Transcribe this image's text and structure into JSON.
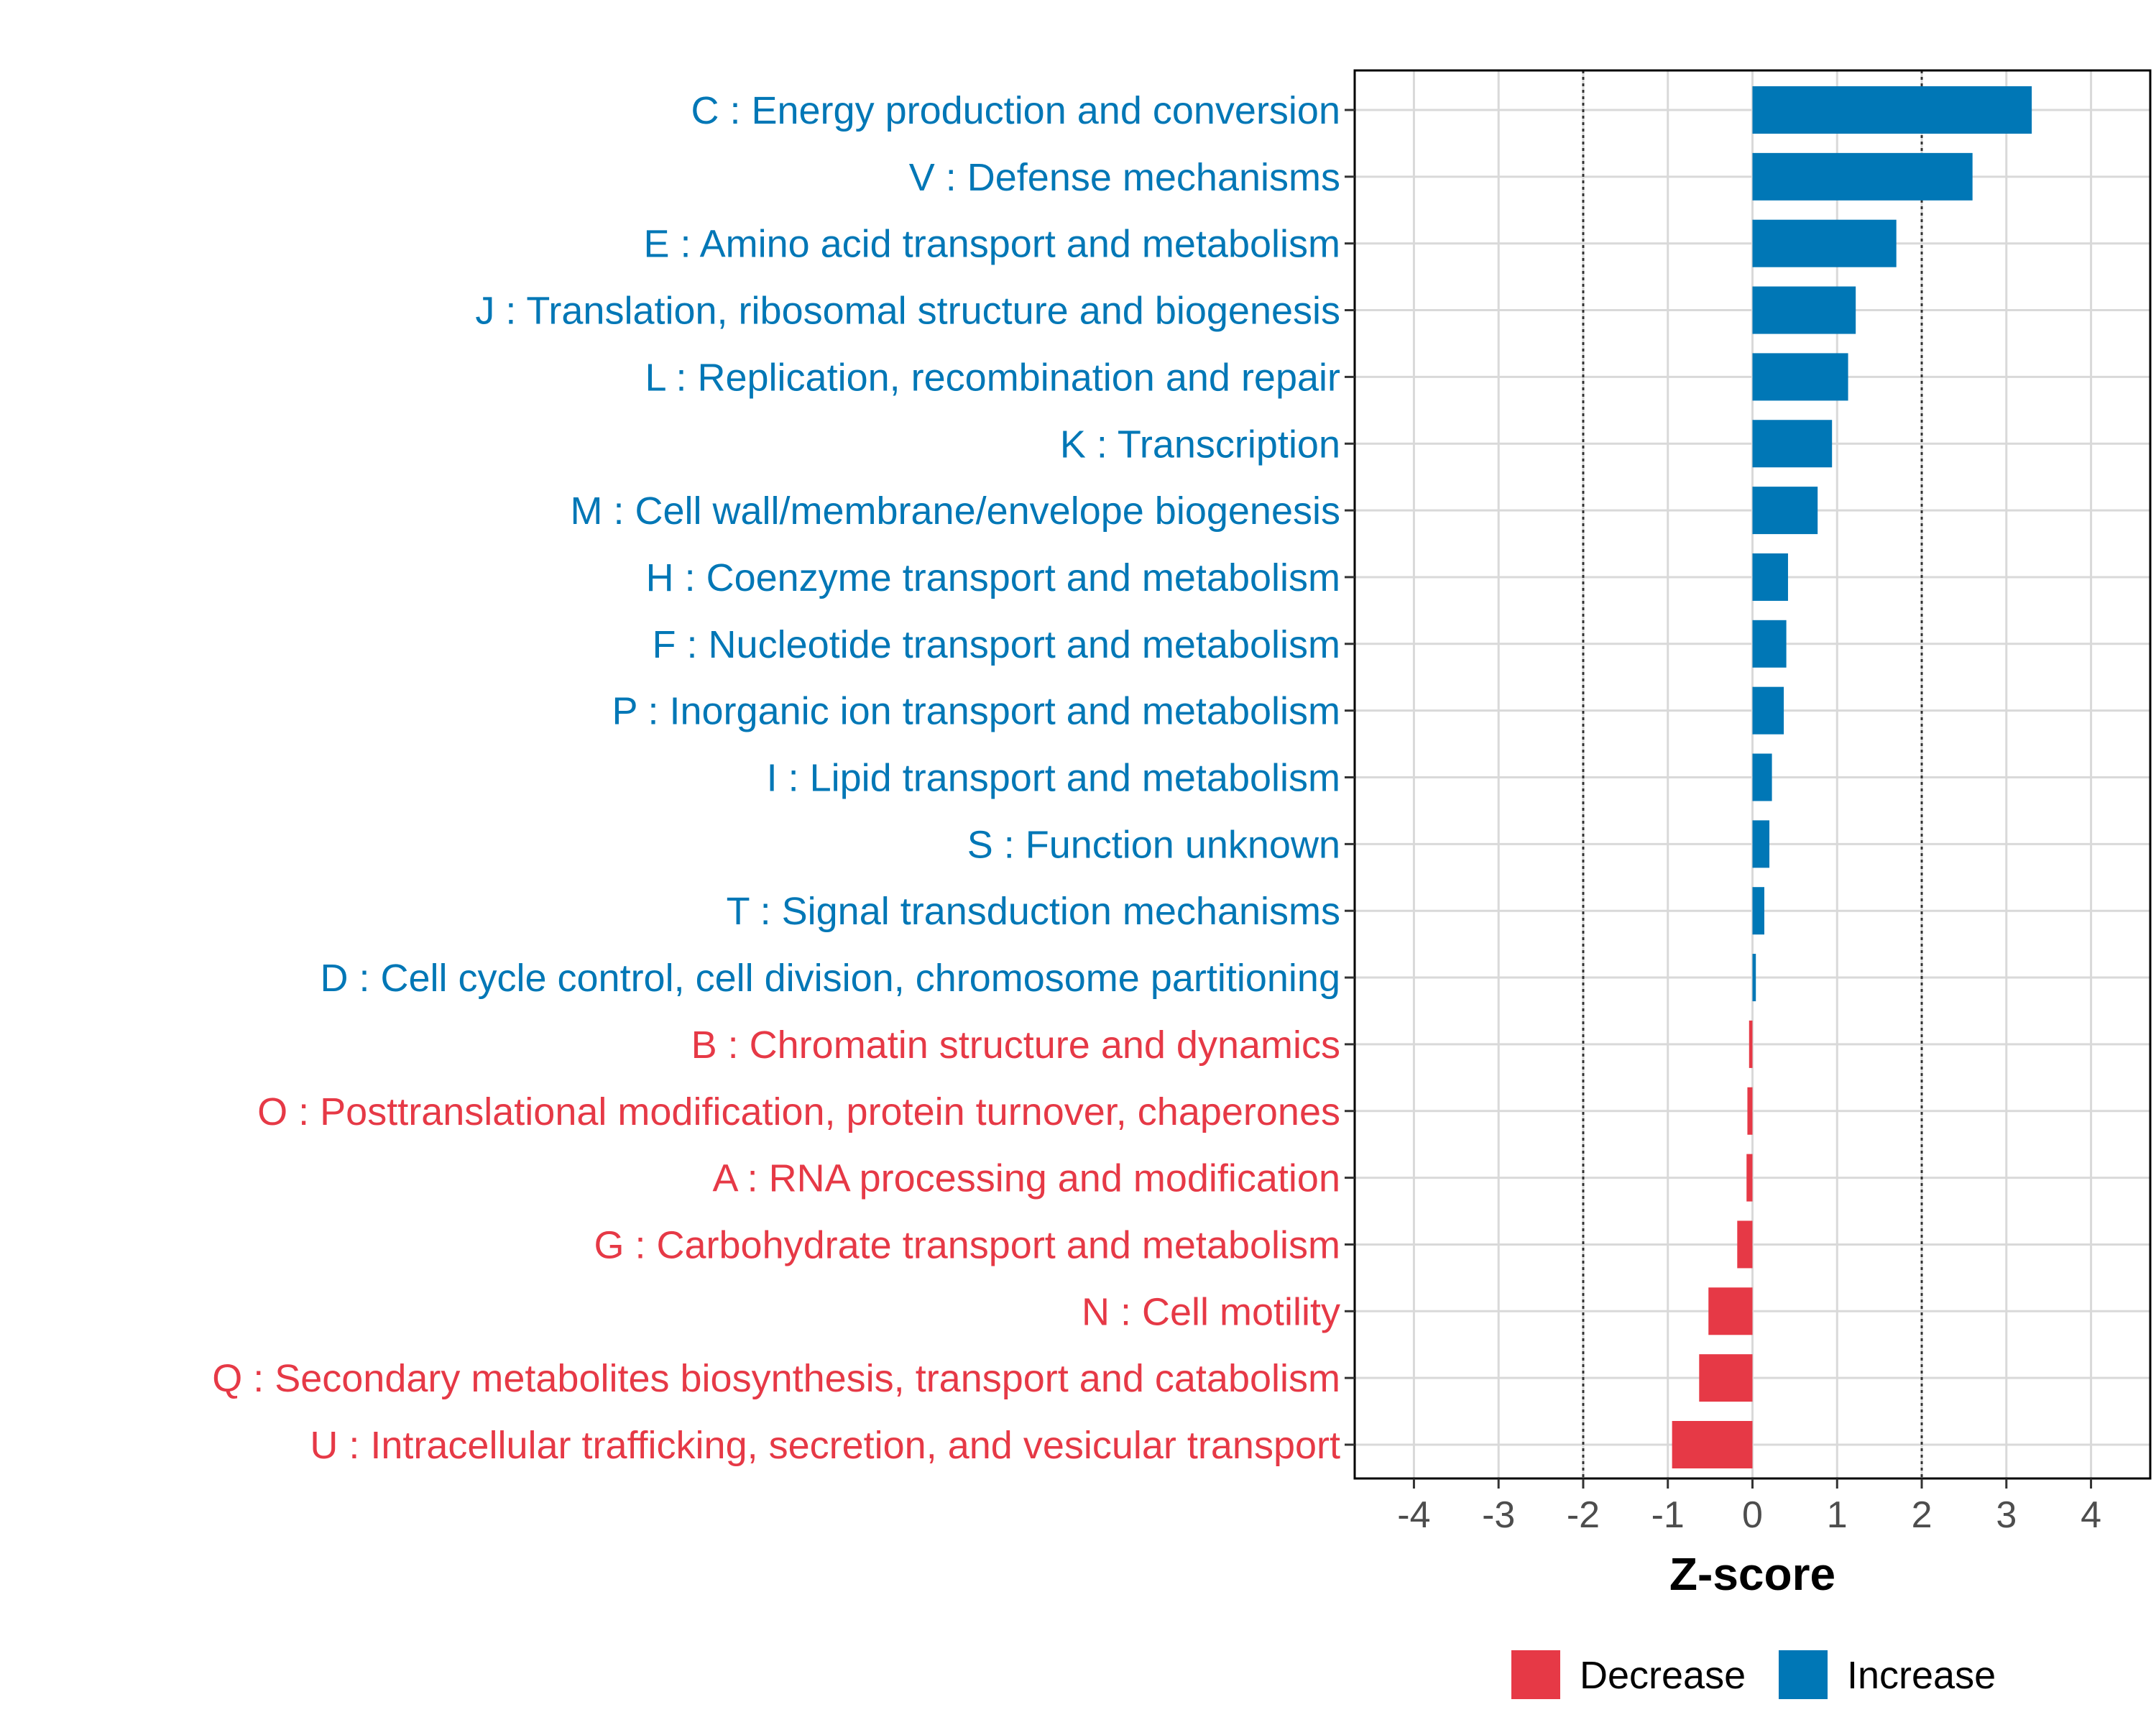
{
  "chart_data": {
    "type": "bar",
    "orientation": "horizontal",
    "xlabel": "Z-score",
    "ylabel": "",
    "xlim": [
      -4.7,
      4.7
    ],
    "xticks": [
      -4,
      -3,
      -2,
      -1,
      0,
      1,
      2,
      3,
      4
    ],
    "reference_lines": [
      -2,
      2
    ],
    "grid": true,
    "legend_position": "bottom",
    "series": [
      {
        "name": "Decrease",
        "color": "#e63946"
      },
      {
        "name": "Increase",
        "color": "#0077b6"
      }
    ],
    "categories": [
      "C : Energy production and conversion",
      "V : Defense mechanisms",
      "E : Amino acid transport and metabolism",
      "J : Translation, ribosomal structure and biogenesis",
      "L : Replication, recombination and repair",
      "K : Transcription",
      "M : Cell wall/membrane/envelope biogenesis",
      "H : Coenzyme transport and metabolism",
      "F : Nucleotide transport and metabolism",
      "P : Inorganic ion transport and metabolism",
      "I : Lipid transport and metabolism",
      "S : Function unknown",
      "T : Signal transduction mechanisms",
      "D : Cell cycle control, cell division, chromosome partitioning",
      "B : Chromatin structure and dynamics",
      "O : Posttranslational modification, protein turnover, chaperones",
      "A : RNA processing and modification",
      "G : Carbohydrate transport and metabolism",
      "N : Cell motility",
      "Q : Secondary metabolites biosynthesis, transport and catabolism",
      "U : Intracellular trafficking, secretion, and vesicular transport"
    ],
    "values": [
      3.3,
      2.6,
      1.7,
      1.22,
      1.13,
      0.94,
      0.77,
      0.42,
      0.4,
      0.37,
      0.23,
      0.2,
      0.14,
      0.04,
      -0.04,
      -0.06,
      -0.07,
      -0.18,
      -0.52,
      -0.63,
      -0.95
    ],
    "groups": [
      "Increase",
      "Increase",
      "Increase",
      "Increase",
      "Increase",
      "Increase",
      "Increase",
      "Increase",
      "Increase",
      "Increase",
      "Increase",
      "Increase",
      "Increase",
      "Increase",
      "Decrease",
      "Decrease",
      "Decrease",
      "Decrease",
      "Decrease",
      "Decrease",
      "Decrease"
    ]
  }
}
